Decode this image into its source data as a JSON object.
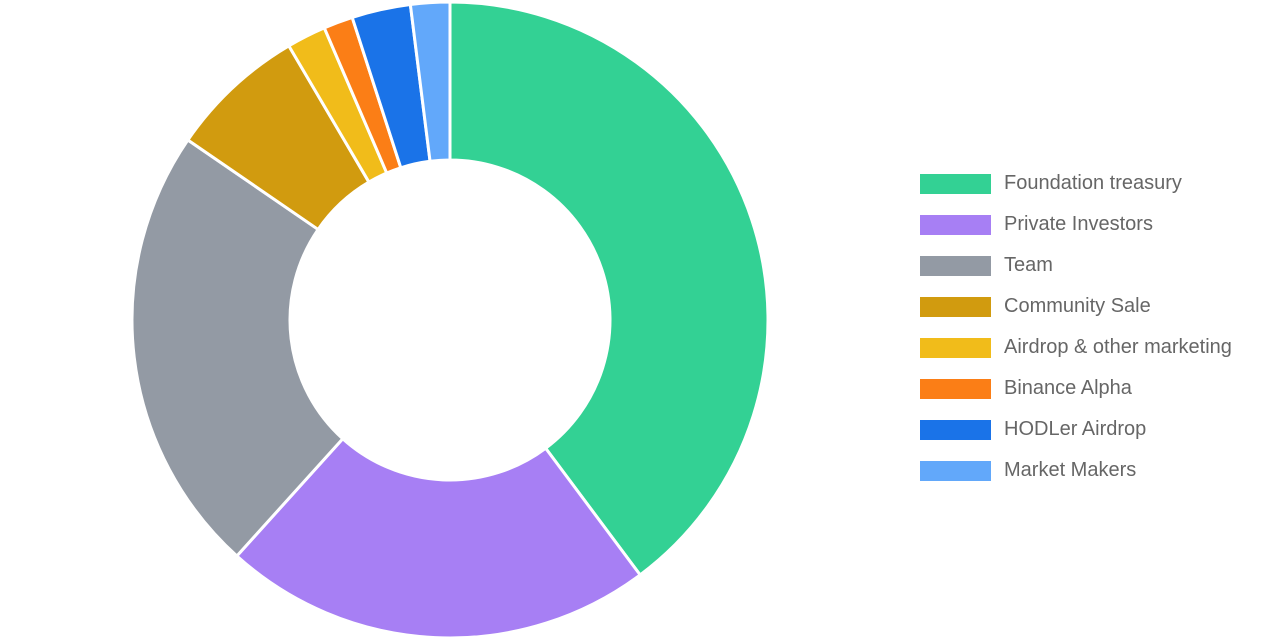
{
  "chart_data": {
    "type": "pie",
    "style": "donut",
    "labels": [
      "Foundation treasury",
      "Private Investors",
      "Team",
      "Community Sale",
      "Airdrop & other marketing",
      "Binance Alpha",
      "HODLer Airdrop",
      "Market Makers"
    ],
    "values": [
      40,
      22,
      23,
      7,
      2,
      1.5,
      3,
      2
    ],
    "colors": [
      "#33d194",
      "#a77ff4",
      "#939aa4",
      "#d19b0f",
      "#f1bc1a",
      "#fb7e16",
      "#1a73e8",
      "#62a8fa"
    ],
    "legend_position": "right",
    "title": "",
    "start": "top",
    "direction": "clockwise"
  }
}
